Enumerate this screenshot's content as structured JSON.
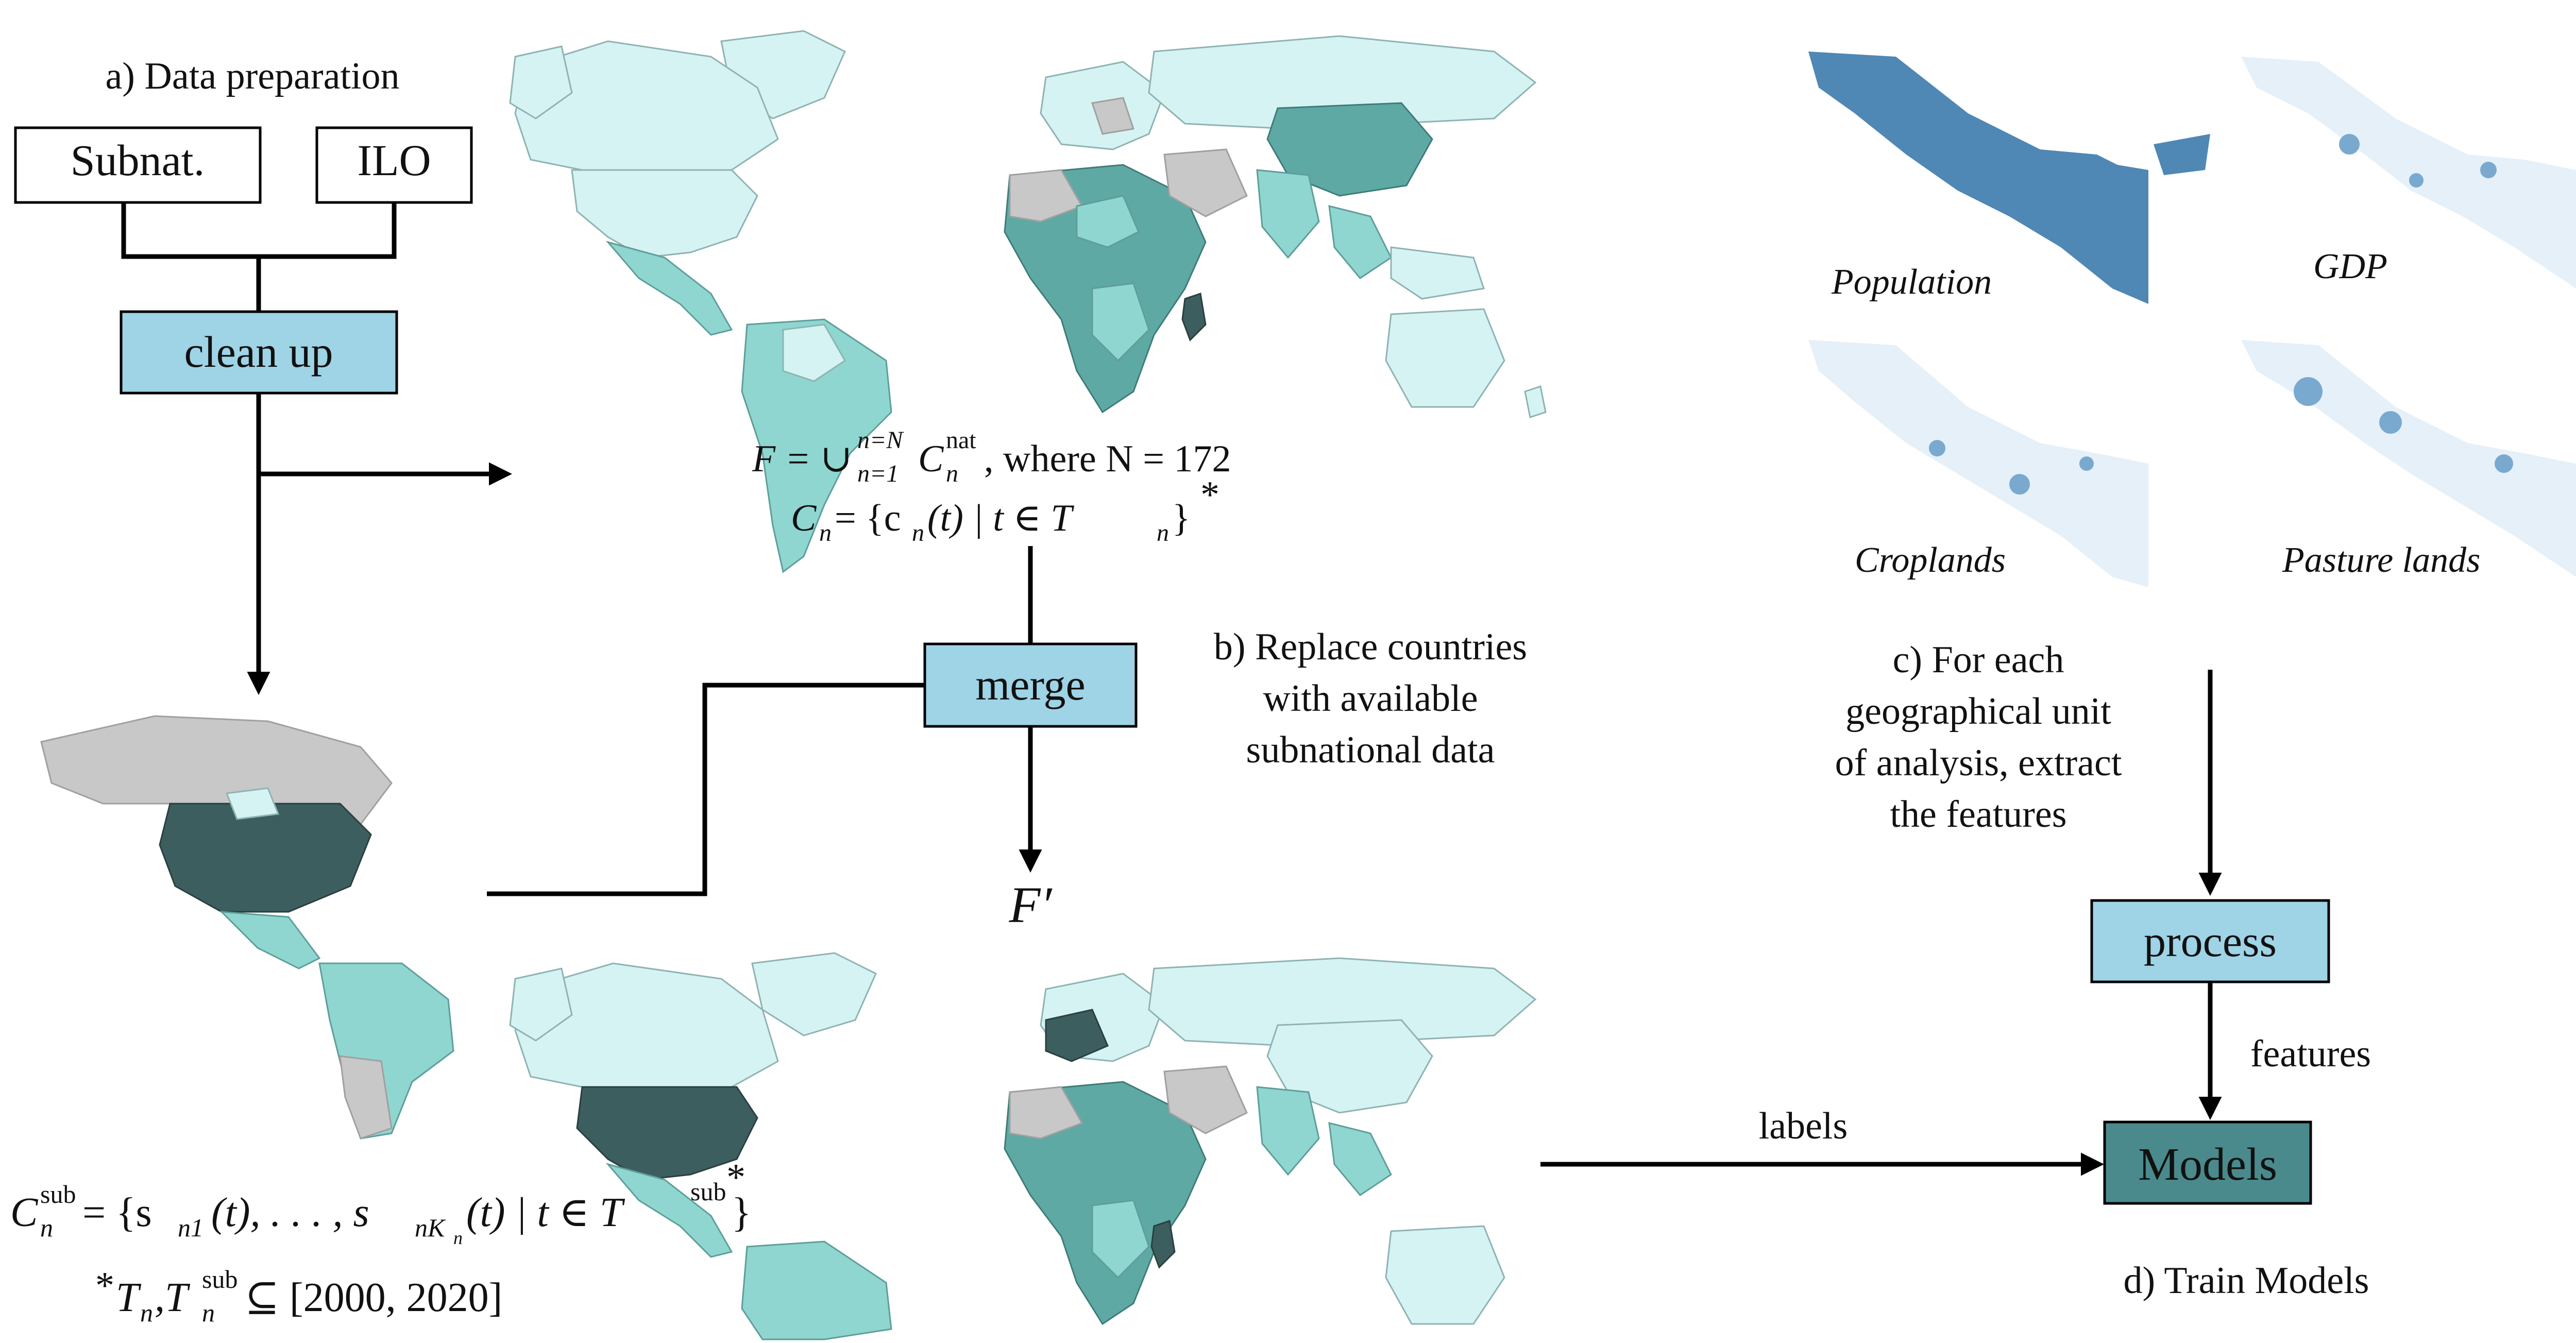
{
  "section_a": {
    "title": "a) Data preparation",
    "box_subnat": "Subnat.",
    "box_ilo": "ILO",
    "box_cleanup": "clean up"
  },
  "section_b": {
    "formula_f_1": "F = ∪",
    "formula_f_sup": "n=N",
    "formula_f_sub": "n=1",
    "formula_f_c": "C",
    "formula_f_c_sup": "nat",
    "formula_f_c_sub": "n",
    "formula_f_rest": ", where N = 172",
    "formula_cn": "C",
    "formula_cn_sub": "n",
    "formula_cn_rest": " = {c",
    "formula_cn_rest2": "(t) | t ∈ T",
    "formula_cn_rest3": "}",
    "asterisk": "*",
    "box_merge": "merge",
    "caption_line1": "b) Replace countries",
    "caption_line2": "with available",
    "caption_line3": "subnational data",
    "f_prime": "F′",
    "formula_sub_lhs": "C",
    "formula_sub_lhs_sup": "sub",
    "formula_sub_lhs_sub": "n",
    "formula_sub_rhs": " = {s",
    "formula_sub_rhs_sub1": "n1",
    "formula_sub_rhs_mid": "(t), . . . , s",
    "formula_sub_rhs_sub2": "nK",
    "formula_sub_rhs_sub3": "n",
    "formula_sub_rhs_end": "(t) | t ∈ T",
    "formula_sub_rhs_sup_end": "sub",
    "formula_sub_rhs_close": "}",
    "footnote_star": "*",
    "footnote_t": "T",
    "footnote_t_sub": "n",
    "footnote_comma": ",T",
    "footnote_t2_sup": "sub",
    "footnote_t2_sub": "n",
    "footnote_rest": "⊆ [2000, 2020]"
  },
  "section_c": {
    "raster_population": "Population",
    "raster_gdp": "GDP",
    "raster_croplands": "Croplands",
    "raster_pasture": "Pasture lands",
    "caption_line1": "c) For each",
    "caption_line2": "geographical unit",
    "caption_line3": "of analysis, extract",
    "caption_line4": "the features",
    "box_process": "process",
    "edge_features": "features"
  },
  "section_d": {
    "edge_labels": "labels",
    "box_models": "Models",
    "caption": "d) Train Models"
  },
  "colors": {
    "box_blue": "#9fd3e6",
    "box_teal": "#4a8a8c",
    "map_light": "#d6f3f3",
    "map_mid": "#8fd6d0",
    "map_dark": "#5fa9a5",
    "map_gray": "#c8c8c8",
    "raster_blue": "#4f87b5"
  }
}
